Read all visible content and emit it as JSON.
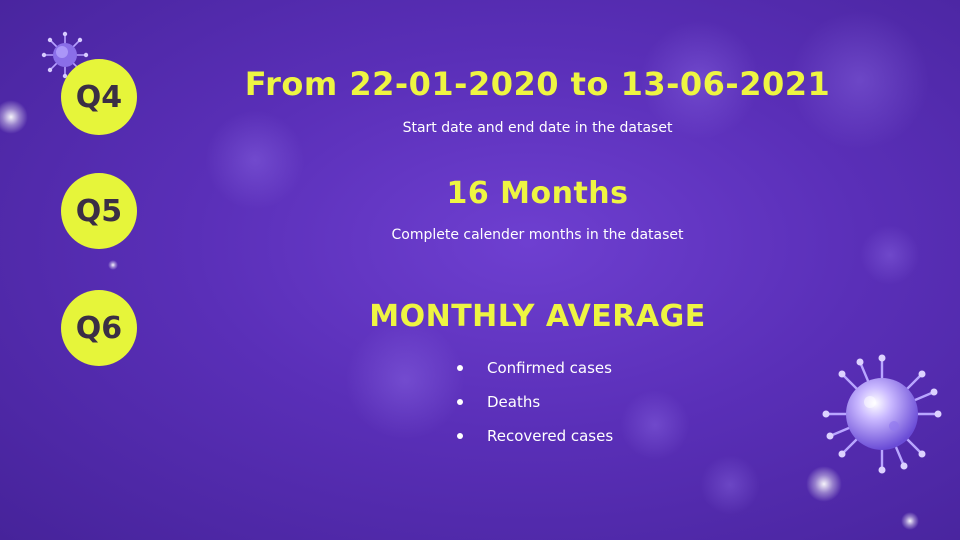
{
  "colors": {
    "background": "#5a2fb8",
    "accent": "#e6f53a",
    "title_text": "#eef542",
    "badge_text": "#3b2e45",
    "body_text": "#ffffff"
  },
  "items": [
    {
      "badge": "Q4",
      "title": "From 22-01-2020 to 13-06-2021",
      "subtitle": "Start date and end date in the dataset"
    },
    {
      "badge": "Q5",
      "title": "16 Months",
      "subtitle": "Complete calender months in the dataset"
    },
    {
      "badge": "Q6",
      "title": "MONTHLY AVERAGE",
      "bullets": [
        "Confirmed cases",
        "Deaths",
        "Recovered cases"
      ]
    }
  ],
  "decorations": [
    "virus-icon",
    "bokeh-light"
  ]
}
